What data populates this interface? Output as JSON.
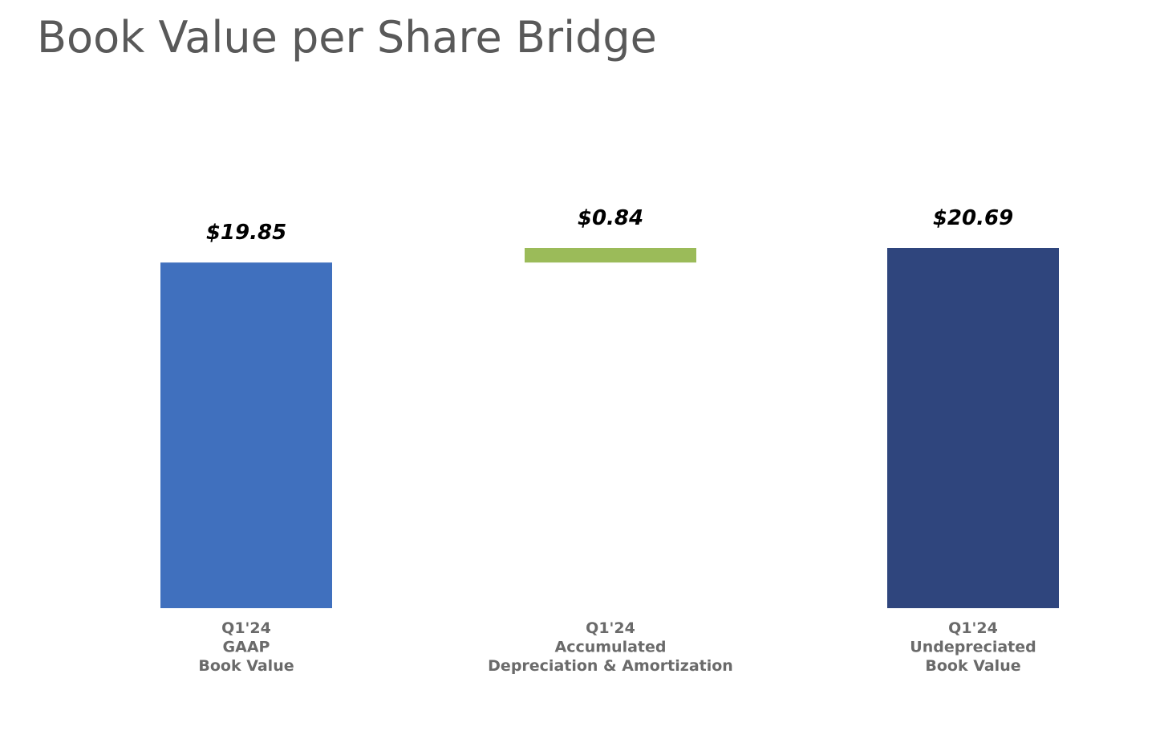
{
  "title": "Book Value per Share Bridge",
  "chart_data": {
    "type": "bar",
    "subtype": "waterfall",
    "title": "Book Value per Share Bridge",
    "xlabel": "",
    "ylabel": "",
    "grid": false,
    "legend": "none",
    "ylim": [
      0,
      20.69
    ],
    "categories": [
      [
        "Q1'24",
        "GAAP",
        "Book Value"
      ],
      [
        "Q1'24",
        "Accumulated",
        "Depreciation & Amortization"
      ],
      [
        "Q1'24",
        "Undepreciated",
        "Book Value"
      ]
    ],
    "bars": [
      {
        "kind": "total",
        "base": 0,
        "value": 19.85,
        "label": "$19.85",
        "color": "#4070be"
      },
      {
        "kind": "increment",
        "base": 19.85,
        "value": 0.84,
        "label": "$0.84",
        "color": "#9bbb59"
      },
      {
        "kind": "total",
        "base": 0,
        "value": 20.69,
        "label": "$20.69",
        "color": "#2f457d"
      }
    ]
  }
}
